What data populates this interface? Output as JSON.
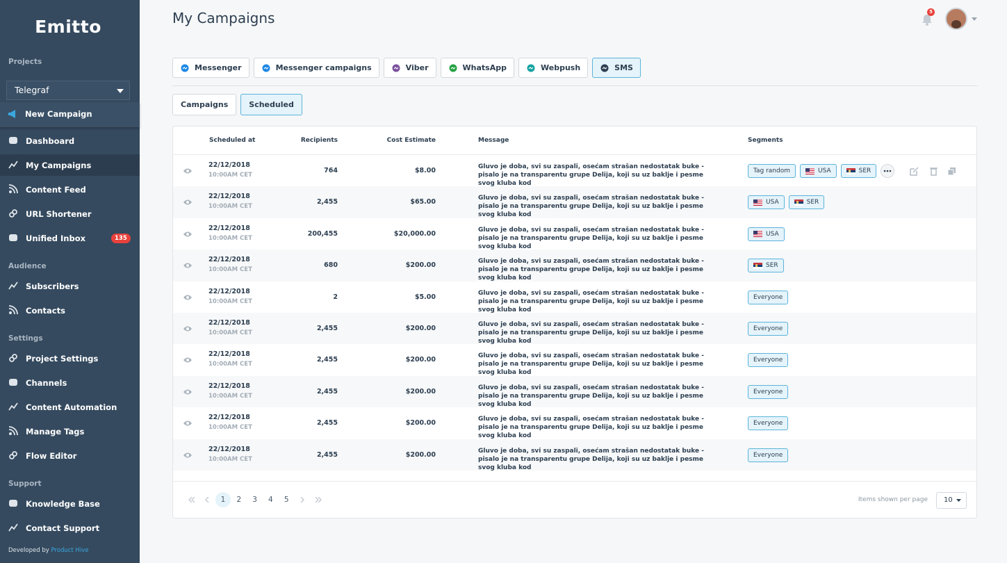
{
  "sidebar": {
    "logo": "Emitto",
    "project_label": "Projects",
    "project": "Telegraf",
    "new_campaign": "New Campaign",
    "groups": [
      {
        "items": [
          {
            "label": "Dashboard"
          },
          {
            "label": "My Campaigns",
            "active": true
          },
          {
            "label": "Content Feed"
          },
          {
            "label": "URL Shortener"
          },
          {
            "label": "Unified Inbox",
            "badge": "135"
          }
        ]
      },
      {
        "title": "Audience",
        "items": [
          {
            "label": "Subscribers"
          },
          {
            "label": "Contacts"
          }
        ]
      },
      {
        "title": "Settings",
        "items": [
          {
            "label": "Project Settings"
          },
          {
            "label": "Channels"
          },
          {
            "label": "Content Automation"
          },
          {
            "label": "Manage Tags"
          },
          {
            "label": "Flow Editor"
          }
        ]
      },
      {
        "title": "Support",
        "items": [
          {
            "label": "Knowledge Base"
          },
          {
            "label": "Contact Support"
          }
        ]
      }
    ],
    "footer": {
      "text": "Developed by",
      "link": "Product Hive"
    }
  },
  "header": {
    "title": "My Campaigns",
    "notifications": "5"
  },
  "channel_tabs": [
    {
      "label": "Messenger",
      "color": "#1e88e5"
    },
    {
      "label": "Messenger campaigns",
      "color": "#1e88e5"
    },
    {
      "label": "Viber",
      "color": "#7b519d"
    },
    {
      "label": "WhatsApp",
      "color": "#25a244"
    },
    {
      "label": "Webpush",
      "color": "#17a2a2"
    },
    {
      "label": "SMS",
      "color": "#2c3e50",
      "active": true
    }
  ],
  "sub_tabs": [
    {
      "label": "Campaigns"
    },
    {
      "label": "Scheduled",
      "active": true
    }
  ],
  "table": {
    "columns": [
      "Scheduled at",
      "Recipients",
      "Cost Estimate",
      "Message",
      "Segments"
    ],
    "rows": [
      {
        "date": "22/12/2018",
        "time": "10:00AM CET",
        "recipients": "764",
        "cost": "$8.00",
        "message": "Gluvo je doba, svi su zaspali, osećam strašan nedostatak buke - pisalo je na transparentu grupe Delija, koji su uz baklje i pesme svog kluba kod",
        "segments": [
          {
            "label": "Tag random"
          },
          {
            "label": "USA",
            "flag": "us"
          },
          {
            "label": "SER",
            "flag": "rs"
          }
        ],
        "hovered": true
      },
      {
        "date": "22/12/2018",
        "time": "10:00AM CET",
        "recipients": "2,455",
        "cost": "$65.00",
        "message": "Gluvo je doba, svi su zaspali, osećam strašan nedostatak buke - pisalo je na transparentu grupe Delija, koji su uz baklje i pesme svog kluba kod",
        "segments": [
          {
            "label": "USA",
            "flag": "us"
          },
          {
            "label": "SER",
            "flag": "rs"
          }
        ]
      },
      {
        "date": "22/12/2018",
        "time": "10:00AM CET",
        "recipients": "200,455",
        "cost": "$20,000.00",
        "message": "Gluvo je doba, svi su zaspali, osećam strašan nedostatak buke - pisalo je na transparentu grupe Delija, koji su uz baklje i pesme svog kluba kod",
        "segments": [
          {
            "label": "USA",
            "flag": "us"
          }
        ]
      },
      {
        "date": "22/12/2018",
        "time": "10:00AM CET",
        "recipients": "680",
        "cost": "$200.00",
        "message": "Gluvo je doba, svi su zaspali, osećam strašan nedostatak buke - pisalo je na transparentu grupe Delija, koji su uz baklje i pesme svog kluba kod",
        "segments": [
          {
            "label": "SER",
            "flag": "rs"
          }
        ]
      },
      {
        "date": "22/12/2018",
        "time": "10:00AM CET",
        "recipients": "2",
        "cost": "$5.00",
        "message": "Gluvo je doba, svi su zaspali, osećam strašan nedostatak buke - pisalo je na transparentu grupe Delija, koji su uz baklje i pesme svog kluba kod",
        "segments": [
          {
            "label": "Everyone"
          }
        ]
      },
      {
        "date": "22/12/2018",
        "time": "10:00AM CET",
        "recipients": "2,455",
        "cost": "$200.00",
        "message": "Gluvo je doba, svi su zaspali, osećam strašan nedostatak buke - pisalo je na transparentu grupe Delija, koji su uz baklje i pesme svog kluba kod",
        "segments": [
          {
            "label": "Everyone"
          }
        ]
      },
      {
        "date": "22/12/2018",
        "time": "10:00AM CET",
        "recipients": "2,455",
        "cost": "$200.00",
        "message": "Gluvo je doba, svi su zaspali, osećam strašan nedostatak buke - pisalo je na transparentu grupe Delija, koji su uz baklje i pesme svog kluba kod",
        "segments": [
          {
            "label": "Everyone"
          }
        ]
      },
      {
        "date": "22/12/2018",
        "time": "10:00AM CET",
        "recipients": "2,455",
        "cost": "$200.00",
        "message": "Gluvo je doba, svi su zaspali, osećam strašan nedostatak buke - pisalo je na transparentu grupe Delija, koji su uz baklje i pesme svog kluba kod",
        "segments": [
          {
            "label": "Everyone"
          }
        ]
      },
      {
        "date": "22/12/2018",
        "time": "10:00AM CET",
        "recipients": "2,455",
        "cost": "$200.00",
        "message": "Gluvo je doba, svi su zaspali, osećam strašan nedostatak buke - pisalo je na transparentu grupe Delija, koji su uz baklje i pesme svog kluba kod",
        "segments": [
          {
            "label": "Everyone"
          }
        ]
      },
      {
        "date": "22/12/2018",
        "time": "10:00AM CET",
        "recipients": "2,455",
        "cost": "$200.00",
        "message": "Gluvo je doba, svi su zaspali, osećam strašan nedostatak buke - pisalo je na transparentu grupe Delija, koji su uz baklje i pesme svog kluba kod",
        "segments": [
          {
            "label": "Everyone"
          }
        ]
      }
    ]
  },
  "pagination": {
    "pages": [
      {
        "label": "1",
        "active": true
      },
      {
        "label": "2"
      },
      {
        "label": "3"
      },
      {
        "label": "4"
      },
      {
        "label": "5"
      }
    ],
    "per_page_label": "Items shown per page",
    "per_page": "10"
  }
}
